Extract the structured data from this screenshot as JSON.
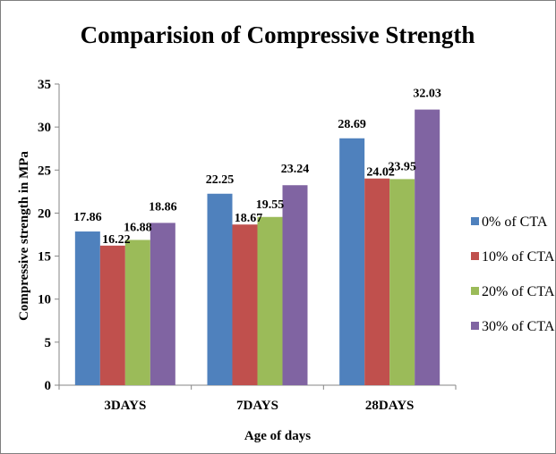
{
  "chart_data": {
    "type": "bar",
    "title": "Comparision of Compressive Strength",
    "xlabel": "Age of days",
    "ylabel": "Compressive strength in MPa",
    "categories": [
      "3DAYS",
      "7DAYS",
      "28DAYS"
    ],
    "ylim": [
      0,
      35
    ],
    "yticks": [
      0,
      5,
      10,
      15,
      20,
      25,
      30,
      35
    ],
    "grid": false,
    "legend_position": "right",
    "series": [
      {
        "name": "0% of CTA",
        "color": "#4f81bd",
        "values": [
          17.86,
          22.25,
          28.69
        ],
        "labels": [
          "17.86",
          "22.25",
          "28.69"
        ]
      },
      {
        "name": "10% of CTA",
        "color": "#c0504d",
        "values": [
          16.22,
          18.67,
          24.02
        ],
        "labels": [
          "16.22",
          "18.67",
          "24.02"
        ]
      },
      {
        "name": "20% of CTA",
        "color": "#9bbb59",
        "values": [
          16.88,
          19.55,
          23.95
        ],
        "labels": [
          "16.88",
          "19.55",
          "23.95"
        ]
      },
      {
        "name": "30% of CTA",
        "color": "#8064a2",
        "values": [
          18.86,
          23.24,
          32.03
        ],
        "labels": [
          "18.86",
          "23.24",
          "32.03"
        ]
      }
    ]
  }
}
